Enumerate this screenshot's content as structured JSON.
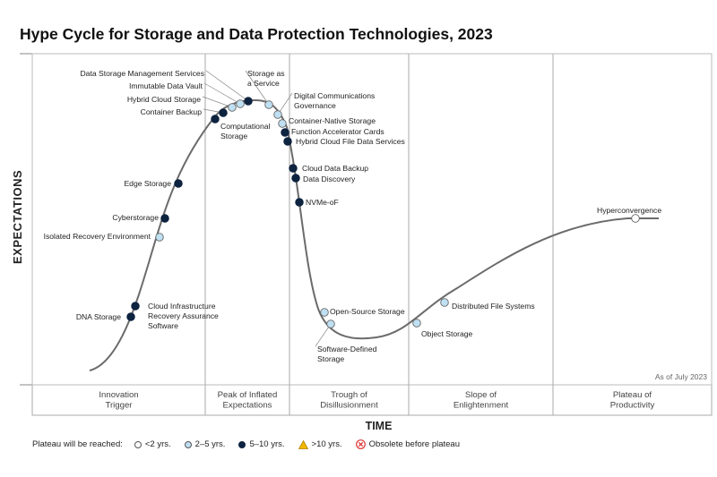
{
  "chart_data": {
    "type": "hype-cycle",
    "title": "Hype Cycle for Storage and Data Protection Technologies, 2023",
    "ylabel": "EXPECTATIONS",
    "xlabel": "TIME",
    "as_of": "As of July 2023",
    "phases": [
      {
        "name": "Innovation\nTrigger"
      },
      {
        "name": "Peak of Inflated\nExpectations"
      },
      {
        "name": "Trough of\nDisillusionment"
      },
      {
        "name": "Slope of\nEnlightenment"
      },
      {
        "name": "Plateau of\nProductivity"
      }
    ],
    "legend": {
      "title": "Plateau will be reached:",
      "items": [
        {
          "label": "<2 yrs.",
          "color": "#ffffff",
          "shape": "circle"
        },
        {
          "label": "2–5 yrs.",
          "color": "#bfe0f2",
          "shape": "circle"
        },
        {
          "label": "5–10 yrs.",
          "color": "#0d2340",
          "shape": "circle"
        },
        {
          "label": ">10 yrs.",
          "color": "#f2b600",
          "shape": "triangle"
        },
        {
          "label": "Obsolete before plateau",
          "color": "#e03131",
          "shape": "x-circle"
        }
      ]
    },
    "technologies": [
      {
        "name": "DNA Storage",
        "category": "5–10 yrs."
      },
      {
        "name": "Cloud Infrastructure\nRecovery Assurance\nSoftware",
        "category": "5–10 yrs."
      },
      {
        "name": "Isolated Recovery Environment",
        "category": "2–5 yrs."
      },
      {
        "name": "Cyberstorage",
        "category": "5–10 yrs."
      },
      {
        "name": "Edge Storage",
        "category": "5–10 yrs."
      },
      {
        "name": "Computational\nStorage",
        "category": "5–10 yrs."
      },
      {
        "name": "Container Backup",
        "category": "5–10 yrs."
      },
      {
        "name": "Hybrid Cloud Storage",
        "category": "2–5 yrs."
      },
      {
        "name": "Immutable Data Vault",
        "category": "2–5 yrs."
      },
      {
        "name": "Data Storage Management Services",
        "category": "5–10 yrs."
      },
      {
        "name": "Storage as\na Service",
        "category": "2–5 yrs."
      },
      {
        "name": "Digital Communications\nGovernance",
        "category": "2–5 yrs."
      },
      {
        "name": "Container-Native Storage",
        "category": "2–5 yrs."
      },
      {
        "name": "Function Accelerator Cards",
        "category": "5–10 yrs."
      },
      {
        "name": "Hybrid Cloud File Data Services",
        "category": "5–10 yrs."
      },
      {
        "name": "Cloud Data Backup",
        "category": "5–10 yrs."
      },
      {
        "name": "Data Discovery",
        "category": "5–10 yrs."
      },
      {
        "name": "NVMe-oF",
        "category": "5–10 yrs."
      },
      {
        "name": "Open-Source Storage",
        "category": "2–5 yrs."
      },
      {
        "name": "Software-Defined\nStorage",
        "category": "2–5 yrs."
      },
      {
        "name": "Object Storage",
        "category": "2–5 yrs."
      },
      {
        "name": "Distributed File Systems",
        "category": "2–5 yrs."
      },
      {
        "name": "Hyperconvergence",
        "category": "<2 yrs."
      }
    ]
  }
}
